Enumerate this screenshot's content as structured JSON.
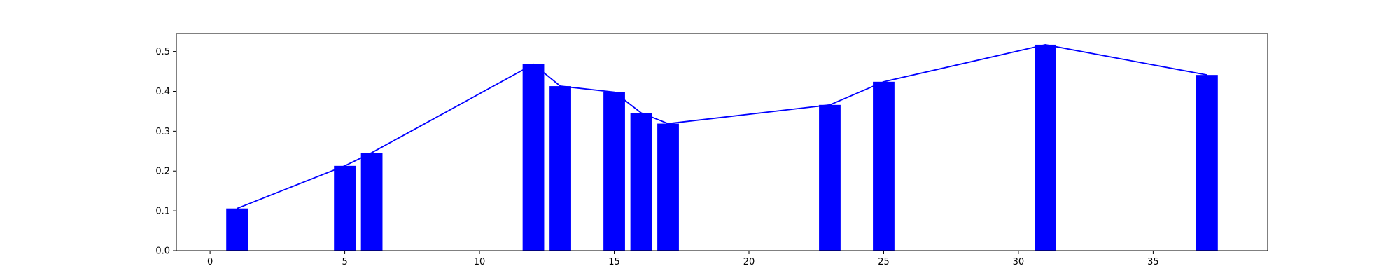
{
  "chart_data": {
    "type": "bar",
    "title": "",
    "xlabel": "",
    "ylabel": "",
    "xlim": [
      -1.25,
      39.25
    ],
    "ylim": [
      0,
      0.545
    ],
    "grid": false,
    "bar_color": "#0000ff",
    "line_color": "#0000ff",
    "bar_width": 0.8,
    "x": [
      1,
      5,
      6,
      12,
      13,
      15,
      16,
      17,
      23,
      25,
      31,
      37
    ],
    "values": [
      0.106,
      0.213,
      0.246,
      0.468,
      0.413,
      0.398,
      0.346,
      0.319,
      0.366,
      0.424,
      0.517,
      0.441
    ],
    "series": [
      {
        "name": "bars",
        "kind": "bar",
        "x": [
          1,
          5,
          6,
          12,
          13,
          15,
          16,
          17,
          23,
          25,
          31,
          37
        ],
        "values": [
          0.106,
          0.213,
          0.246,
          0.468,
          0.413,
          0.398,
          0.346,
          0.319,
          0.366,
          0.424,
          0.517,
          0.441
        ]
      },
      {
        "name": "line",
        "kind": "line",
        "x": [
          1,
          5,
          6,
          12,
          13,
          15,
          16,
          17,
          23,
          25,
          31,
          37
        ],
        "values": [
          0.106,
          0.213,
          0.246,
          0.468,
          0.413,
          0.398,
          0.346,
          0.319,
          0.366,
          0.424,
          0.517,
          0.441
        ]
      }
    ],
    "xticks": [
      0,
      5,
      10,
      15,
      20,
      25,
      30,
      35
    ],
    "xtick_labels": [
      "0",
      "5",
      "10",
      "15",
      "20",
      "25",
      "30",
      "35"
    ],
    "yticks": [
      0.0,
      0.1,
      0.2,
      0.3,
      0.4,
      0.5
    ],
    "ytick_labels": [
      "0.0",
      "0.1",
      "0.2",
      "0.3",
      "0.4",
      "0.5"
    ]
  }
}
